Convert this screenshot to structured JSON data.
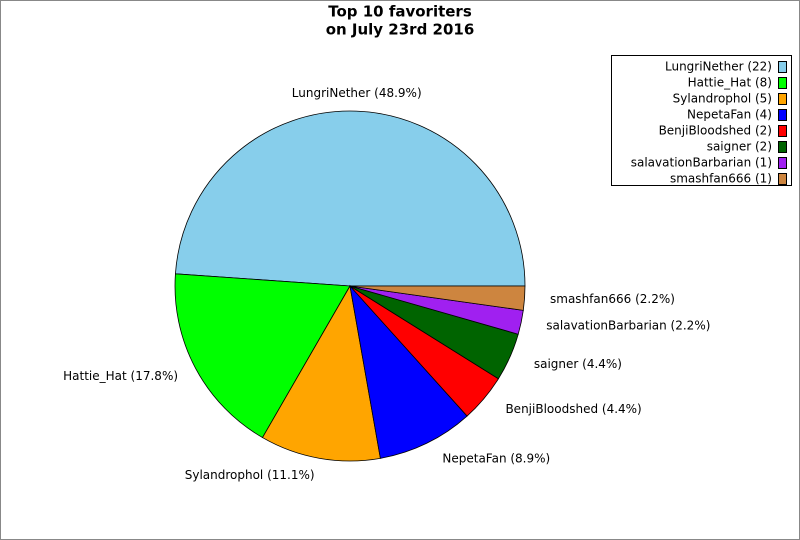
{
  "chart_data": {
    "type": "pie",
    "title": [
      "Top 10 favoriters",
      "on July 23rd 2016"
    ],
    "categories": [
      "LungriNether",
      "Hattie_Hat",
      "Sylandrophol",
      "NepetaFan",
      "BenjiBloodshed",
      "saigner",
      "salavationBarbarian",
      "smashfan666"
    ],
    "values": [
      22,
      8,
      5,
      4,
      2,
      2,
      1,
      1
    ],
    "slice_labels": [
      "LungriNether (48.9%)",
      "Hattie_Hat (17.8%)",
      "Sylandrophol (11.1%)",
      "NepetaFan (8.9%)",
      "BenjiBloodshed (4.4%)",
      "saigner (4.4%)",
      "salavationBarbarian (2.2%)",
      "smashfan666 (2.2%)"
    ],
    "legend_labels": [
      "LungriNether (22)",
      "Hattie_Hat (8)",
      "Sylandrophol (5)",
      "NepetaFan (4)",
      "BenjiBloodshed (2)",
      "saigner (2)",
      "salavationBarbarian (1)",
      "smashfan666 (1)"
    ],
    "colors": [
      "#87ceeb",
      "#00ff00",
      "#ffa500",
      "#0000ff",
      "#ff0000",
      "#006400",
      "#a020f0",
      "#cd853f"
    ],
    "legend": "upper right"
  }
}
